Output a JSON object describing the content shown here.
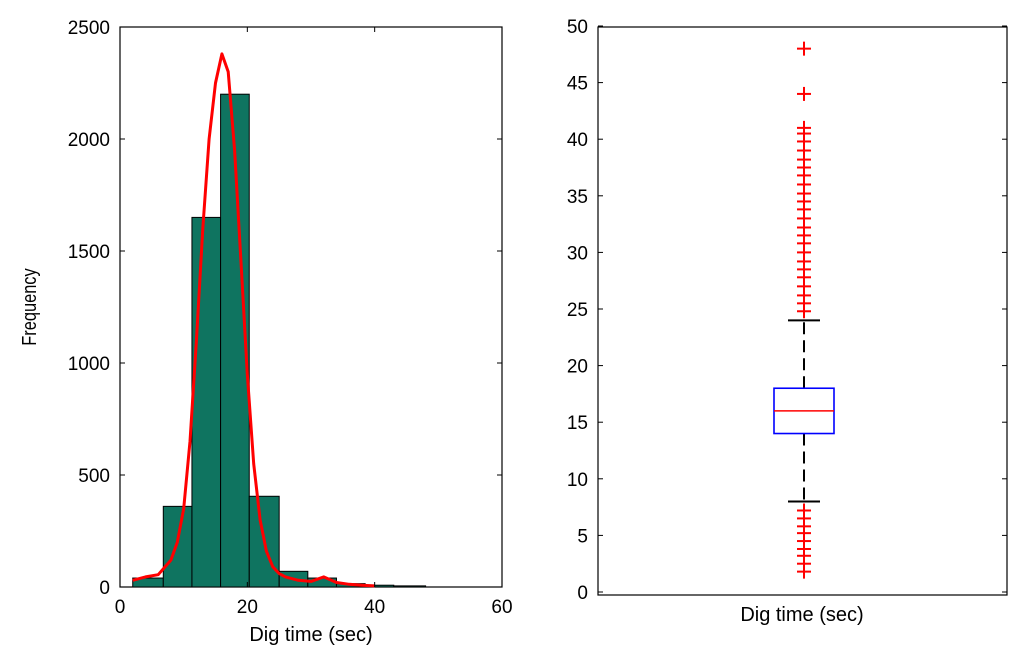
{
  "chart_data": [
    {
      "type": "bar",
      "subtype": "histogram",
      "xlabel": "Dig time (sec)",
      "ylabel": "Frequency",
      "xlim": [
        0,
        60
      ],
      "ylim": [
        0,
        2500
      ],
      "xticks": [
        0,
        20,
        40,
        60
      ],
      "yticks": [
        0,
        500,
        1000,
        1500,
        2000,
        2500
      ],
      "bar_color": "#0f7460",
      "bins": [
        {
          "x0": 2.0,
          "x1": 6.8,
          "value": 40
        },
        {
          "x0": 6.8,
          "x1": 11.3,
          "value": 360
        },
        {
          "x0": 11.3,
          "x1": 15.8,
          "value": 1650
        },
        {
          "x0": 15.8,
          "x1": 20.3,
          "value": 2200
        },
        {
          "x0": 20.3,
          "x1": 25.0,
          "value": 405
        },
        {
          "x0": 25.0,
          "x1": 29.5,
          "value": 70
        },
        {
          "x0": 29.5,
          "x1": 34.0,
          "value": 40
        },
        {
          "x0": 34.0,
          "x1": 38.5,
          "value": 15
        },
        {
          "x0": 38.5,
          "x1": 43.0,
          "value": 8
        },
        {
          "x0": 43.0,
          "x1": 48.0,
          "value": 5
        }
      ],
      "fit_curve": {
        "color": "#ff0000",
        "x": [
          2,
          4,
          6,
          8,
          9,
          10,
          11,
          12,
          13,
          14,
          15,
          16,
          17,
          18,
          19,
          20,
          21,
          22,
          23,
          24,
          25,
          26,
          28,
          30,
          32,
          34,
          36,
          38,
          40
        ],
        "y": [
          30,
          45,
          55,
          120,
          200,
          350,
          650,
          1100,
          1600,
          2000,
          2250,
          2380,
          2300,
          1950,
          1450,
          950,
          550,
          300,
          160,
          90,
          60,
          45,
          30,
          25,
          45,
          20,
          12,
          8,
          5
        ]
      }
    },
    {
      "type": "box",
      "xlabel": "Dig time (sec)",
      "ylim": [
        0,
        50
      ],
      "yticks": [
        0,
        5,
        10,
        15,
        20,
        25,
        30,
        35,
        40,
        45,
        50
      ],
      "box": {
        "q1": 14,
        "median": 16,
        "q3": 18,
        "whisker_low": 8,
        "whisker_high": 24
      },
      "box_color": "#0000ff",
      "median_color": "#ff0000",
      "outlier_color": "#ff0000",
      "outliers": [
        1.8,
        2.5,
        3.2,
        3.8,
        4.5,
        5.2,
        5.8,
        6.5,
        7.2,
        24.8,
        25.5,
        26.2,
        27,
        27.8,
        28.5,
        29.2,
        30,
        30.8,
        31.5,
        32.2,
        33,
        33.8,
        34.5,
        35.2,
        36,
        36.8,
        37.5,
        38.2,
        39,
        39.8,
        40.5,
        41,
        44,
        48
      ]
    }
  ]
}
